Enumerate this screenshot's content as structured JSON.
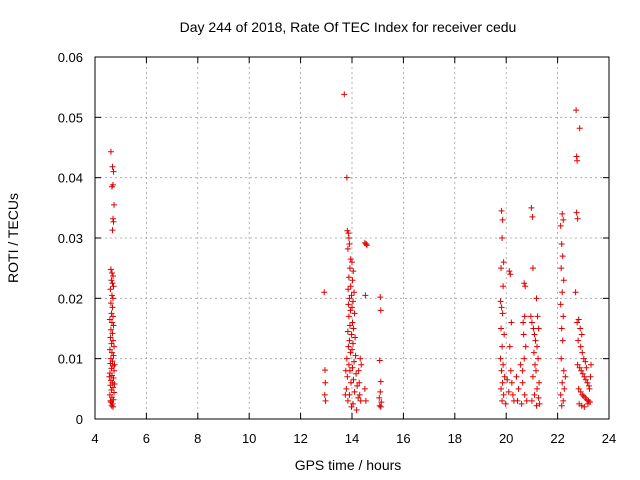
{
  "chart_data": {
    "type": "scatter",
    "title": "Day 244 of 2018, Rate Of TEC Index for receiver cedu",
    "xlabel": "GPS time / hours",
    "ylabel": "ROTI / TECUs",
    "xlim": [
      4,
      24
    ],
    "ylim": [
      0,
      0.06
    ],
    "xticks": [
      4,
      6,
      8,
      10,
      12,
      14,
      16,
      18,
      20,
      22,
      24
    ],
    "xtick_labels": [
      "4",
      "6",
      "8",
      "10",
      "12",
      "14",
      "16",
      "18",
      "20",
      "22",
      "24"
    ],
    "yticks": [
      0,
      0.01,
      0.02,
      0.03,
      0.04,
      0.05,
      0.06
    ],
    "ytick_labels": [
      "0",
      "0.01",
      "0.02",
      "0.03",
      "0.04",
      "0.05",
      "0.06"
    ],
    "grid": true,
    "marker": "plus",
    "color": "#e00000",
    "series": [
      {
        "name": "ROTI",
        "points": [
          [
            4.62,
            0.0443
          ],
          [
            4.68,
            0.0418
          ],
          [
            4.72,
            0.041
          ],
          [
            4.7,
            0.0388
          ],
          [
            4.66,
            0.0385
          ],
          [
            4.74,
            0.0355
          ],
          [
            4.7,
            0.0332
          ],
          [
            4.72,
            0.0327
          ],
          [
            4.68,
            0.0313
          ],
          [
            4.62,
            0.0248
          ],
          [
            4.66,
            0.0242
          ],
          [
            4.7,
            0.0237
          ],
          [
            4.64,
            0.023
          ],
          [
            4.68,
            0.0225
          ],
          [
            4.72,
            0.022
          ],
          [
            4.6,
            0.0215
          ],
          [
            4.66,
            0.0205
          ],
          [
            4.7,
            0.02
          ],
          [
            4.62,
            0.0192
          ],
          [
            4.68,
            0.0185
          ],
          [
            4.64,
            0.0175
          ],
          [
            4.7,
            0.017
          ],
          [
            4.58,
            0.0165
          ],
          [
            4.66,
            0.016
          ],
          [
            4.72,
            0.0155
          ],
          [
            4.62,
            0.0148
          ],
          [
            4.68,
            0.0142
          ],
          [
            4.6,
            0.0135
          ],
          [
            4.7,
            0.013
          ],
          [
            4.64,
            0.0125
          ],
          [
            4.74,
            0.012
          ],
          [
            4.58,
            0.0115
          ],
          [
            4.66,
            0.011
          ],
          [
            4.72,
            0.0105
          ],
          [
            4.62,
            0.01
          ],
          [
            4.68,
            0.0096
          ],
          [
            4.6,
            0.0092
          ],
          [
            4.7,
            0.0088
          ],
          [
            4.64,
            0.0084
          ],
          [
            4.74,
            0.008
          ],
          [
            4.58,
            0.0076
          ],
          [
            4.66,
            0.0072
          ],
          [
            4.72,
            0.0068
          ],
          [
            4.62,
            0.0064
          ],
          [
            4.68,
            0.006
          ],
          [
            4.6,
            0.0056
          ],
          [
            4.7,
            0.0052
          ],
          [
            4.64,
            0.0048
          ],
          [
            4.74,
            0.0044
          ],
          [
            4.58,
            0.004
          ],
          [
            4.66,
            0.0036
          ],
          [
            4.72,
            0.0032
          ],
          [
            4.62,
            0.0028
          ],
          [
            4.68,
            0.0025
          ],
          [
            4.65,
            0.0022
          ],
          [
            4.7,
            0.002
          ],
          [
            4.76,
            0.0058
          ],
          [
            4.76,
            0.009
          ],
          [
            4.56,
            0.007
          ],
          [
            4.6,
            0.003
          ],
          [
            12.92,
            0.021
          ],
          [
            12.95,
            0.0081
          ],
          [
            12.96,
            0.006
          ],
          [
            12.94,
            0.004
          ],
          [
            12.97,
            0.003
          ],
          [
            13.7,
            0.0538
          ],
          [
            13.8,
            0.04
          ],
          [
            13.82,
            0.0312
          ],
          [
            13.86,
            0.0308
          ],
          [
            13.88,
            0.03
          ],
          [
            13.9,
            0.029
          ],
          [
            13.84,
            0.0282
          ],
          [
            13.95,
            0.0265
          ],
          [
            14.0,
            0.026
          ],
          [
            13.92,
            0.025
          ],
          [
            14.05,
            0.0245
          ],
          [
            13.88,
            0.0235
          ],
          [
            14.02,
            0.023
          ],
          [
            13.95,
            0.022
          ],
          [
            13.85,
            0.0215
          ],
          [
            14.08,
            0.021
          ],
          [
            13.98,
            0.0205
          ],
          [
            13.9,
            0.02
          ],
          [
            14.04,
            0.0195
          ],
          [
            13.86,
            0.019
          ],
          [
            14.0,
            0.0185
          ],
          [
            13.94,
            0.018
          ],
          [
            14.1,
            0.0175
          ],
          [
            13.88,
            0.017
          ],
          [
            14.02,
            0.016
          ],
          [
            13.92,
            0.0155
          ],
          [
            14.06,
            0.015
          ],
          [
            13.84,
            0.0145
          ],
          [
            13.98,
            0.014
          ],
          [
            14.12,
            0.0135
          ],
          [
            13.9,
            0.013
          ],
          [
            14.04,
            0.0125
          ],
          [
            13.86,
            0.012
          ],
          [
            14.0,
            0.0115
          ],
          [
            13.94,
            0.011
          ],
          [
            14.14,
            0.0105
          ],
          [
            13.8,
            0.01
          ],
          [
            14.08,
            0.0095
          ],
          [
            13.88,
            0.009
          ],
          [
            14.02,
            0.0085
          ],
          [
            13.92,
            0.008
          ],
          [
            14.16,
            0.0075
          ],
          [
            13.82,
            0.007
          ],
          [
            14.06,
            0.0065
          ],
          [
            13.96,
            0.006
          ],
          [
            14.2,
            0.0055
          ],
          [
            13.78,
            0.005
          ],
          [
            14.1,
            0.0045
          ],
          [
            13.9,
            0.004
          ],
          [
            14.24,
            0.0035
          ],
          [
            13.84,
            0.003
          ],
          [
            14.04,
            0.0025
          ],
          [
            13.98,
            0.002
          ],
          [
            14.18,
            0.0015
          ],
          [
            14.28,
            0.006
          ],
          [
            14.32,
            0.01
          ],
          [
            14.26,
            0.008
          ],
          [
            14.3,
            0.004
          ],
          [
            14.36,
            0.009
          ],
          [
            14.34,
            0.003
          ],
          [
            13.76,
            0.008
          ],
          [
            13.74,
            0.004
          ],
          [
            14.5,
            0.0292
          ],
          [
            14.55,
            0.029
          ],
          [
            14.58,
            0.0288
          ],
          [
            14.52,
            0.0205
          ],
          [
            14.5,
            0.005
          ],
          [
            14.54,
            0.003
          ],
          [
            15.1,
            0.0202
          ],
          [
            15.12,
            0.018
          ],
          [
            15.08,
            0.0097
          ],
          [
            15.12,
            0.0062
          ],
          [
            15.1,
            0.0045
          ],
          [
            15.06,
            0.0035
          ],
          [
            15.14,
            0.0028
          ],
          [
            15.08,
            0.0022
          ],
          [
            15.12,
            0.002
          ],
          [
            19.82,
            0.0345
          ],
          [
            19.86,
            0.033
          ],
          [
            19.84,
            0.03
          ],
          [
            19.9,
            0.026
          ],
          [
            19.8,
            0.025
          ],
          [
            19.88,
            0.022
          ],
          [
            19.78,
            0.0195
          ],
          [
            19.82,
            0.0185
          ],
          [
            19.86,
            0.0175
          ],
          [
            19.8,
            0.015
          ],
          [
            19.92,
            0.014
          ],
          [
            19.84,
            0.012
          ],
          [
            19.78,
            0.01
          ],
          [
            19.88,
            0.009
          ],
          [
            19.82,
            0.008
          ],
          [
            19.94,
            0.007
          ],
          [
            19.86,
            0.006
          ],
          [
            19.8,
            0.005
          ],
          [
            19.9,
            0.004
          ],
          [
            19.84,
            0.003
          ],
          [
            19.98,
            0.0025
          ],
          [
            20.04,
            0.0065
          ],
          [
            20.1,
            0.0045
          ],
          [
            20.12,
            0.0245
          ],
          [
            20.16,
            0.024
          ],
          [
            20.2,
            0.016
          ],
          [
            20.14,
            0.012
          ],
          [
            20.18,
            0.008
          ],
          [
            20.22,
            0.006
          ],
          [
            20.26,
            0.004
          ],
          [
            20.3,
            0.003
          ],
          [
            20.4,
            0.007
          ],
          [
            20.48,
            0.005
          ],
          [
            20.56,
            0.009
          ],
          [
            20.64,
            0.006
          ],
          [
            20.72,
            0.004
          ],
          [
            20.8,
            0.003
          ],
          [
            20.44,
            0.003
          ],
          [
            20.6,
            0.0025
          ],
          [
            20.7,
            0.0225
          ],
          [
            20.74,
            0.022
          ],
          [
            20.72,
            0.017
          ],
          [
            20.66,
            0.016
          ],
          [
            20.68,
            0.014
          ],
          [
            20.76,
            0.012
          ],
          [
            20.7,
            0.01
          ],
          [
            20.64,
            0.008
          ],
          [
            20.98,
            0.035
          ],
          [
            21.02,
            0.0335
          ],
          [
            21.04,
            0.025
          ],
          [
            20.96,
            0.017
          ],
          [
            21.0,
            0.016
          ],
          [
            21.06,
            0.015
          ],
          [
            21.1,
            0.014
          ],
          [
            21.14,
            0.013
          ],
          [
            21.18,
            0.02
          ],
          [
            21.22,
            0.017
          ],
          [
            21.26,
            0.015
          ],
          [
            21.2,
            0.012
          ],
          [
            21.24,
            0.01
          ],
          [
            21.08,
            0.011
          ],
          [
            21.12,
            0.009
          ],
          [
            21.16,
            0.008
          ],
          [
            21.04,
            0.007
          ],
          [
            21.28,
            0.006
          ],
          [
            21.2,
            0.005
          ],
          [
            21.1,
            0.004
          ],
          [
            21.0,
            0.003
          ],
          [
            21.3,
            0.0025
          ],
          [
            21.18,
            0.0022
          ],
          [
            21.26,
            0.0035
          ],
          [
            22.12,
            0.032
          ],
          [
            22.18,
            0.034
          ],
          [
            22.22,
            0.033
          ],
          [
            22.16,
            0.029
          ],
          [
            22.2,
            0.027
          ],
          [
            22.14,
            0.025
          ],
          [
            22.24,
            0.023
          ],
          [
            22.18,
            0.021
          ],
          [
            22.12,
            0.019
          ],
          [
            22.22,
            0.017
          ],
          [
            22.16,
            0.015
          ],
          [
            22.2,
            0.013
          ],
          [
            22.14,
            0.01
          ],
          [
            22.24,
            0.008
          ],
          [
            22.18,
            0.006
          ],
          [
            22.12,
            0.004
          ],
          [
            22.22,
            0.003
          ],
          [
            22.16,
            0.0022
          ],
          [
            22.26,
            0.005
          ],
          [
            22.3,
            0.007
          ],
          [
            22.72,
            0.0512
          ],
          [
            22.86,
            0.0482
          ],
          [
            22.74,
            0.0435
          ],
          [
            22.76,
            0.0428
          ],
          [
            22.74,
            0.0342
          ],
          [
            22.78,
            0.0332
          ],
          [
            22.7,
            0.021
          ],
          [
            22.76,
            0.016
          ],
          [
            22.82,
            0.0165
          ],
          [
            22.88,
            0.015
          ],
          [
            22.94,
            0.014
          ],
          [
            22.8,
            0.013
          ],
          [
            22.9,
            0.012
          ],
          [
            22.96,
            0.011
          ],
          [
            23.02,
            0.01
          ],
          [
            23.08,
            0.0095
          ],
          [
            22.78,
            0.009
          ],
          [
            22.86,
            0.0085
          ],
          [
            22.92,
            0.008
          ],
          [
            22.98,
            0.0075
          ],
          [
            23.04,
            0.007
          ],
          [
            23.1,
            0.0065
          ],
          [
            23.16,
            0.006
          ],
          [
            23.22,
            0.0055
          ],
          [
            22.82,
            0.005
          ],
          [
            22.9,
            0.0045
          ],
          [
            22.96,
            0.004
          ],
          [
            23.02,
            0.0038
          ],
          [
            23.08,
            0.0035
          ],
          [
            23.14,
            0.0032
          ],
          [
            23.2,
            0.003
          ],
          [
            23.26,
            0.0028
          ],
          [
            22.84,
            0.0025
          ],
          [
            22.94,
            0.0022
          ],
          [
            23.04,
            0.002
          ],
          [
            23.18,
            0.0025
          ],
          [
            23.24,
            0.005
          ],
          [
            23.28,
            0.007
          ],
          [
            23.3,
            0.009
          ],
          [
            23.12,
            0.0085
          ]
        ]
      }
    ]
  }
}
